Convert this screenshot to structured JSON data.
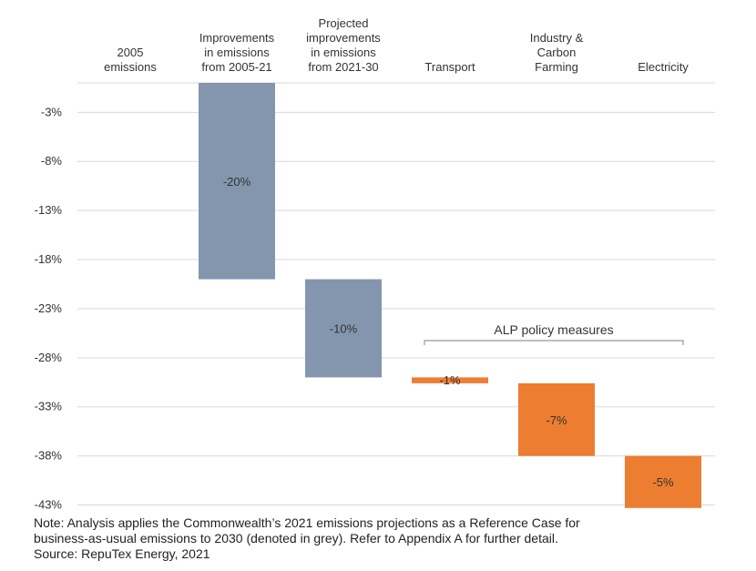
{
  "chart_data": {
    "type": "bar",
    "subtype": "waterfall",
    "categories": [
      [
        "2005",
        "emissions"
      ],
      [
        "Improvements",
        "in emissions",
        "from 2005-21"
      ],
      [
        "Projected",
        "improvements",
        "in emissions",
        "from 2021-30"
      ],
      [
        "Transport"
      ],
      [
        "Industry &",
        "Carbon",
        "Farming"
      ],
      [
        "Electricity"
      ]
    ],
    "bars": [
      {
        "start": 0,
        "end": -20,
        "label": "-20%",
        "color": "#8496ae"
      },
      {
        "start": -20,
        "end": -30,
        "label": "-10%",
        "color": "#8496ae"
      },
      {
        "start": -30,
        "end": -30.6,
        "label": "-1%",
        "color": "#ed7d31"
      },
      {
        "start": -30.6,
        "end": -38,
        "label": "-7%",
        "color": "#ed7d31"
      },
      {
        "start": -38,
        "end": -43.3,
        "label": "-5%",
        "color": "#ed7d31"
      }
    ],
    "yticks": [
      -3,
      -8,
      -13,
      -18,
      -23,
      -28,
      -33,
      -38,
      -43
    ],
    "ytick_labels": [
      "-3%",
      "-8%",
      "-13%",
      "-18%",
      "-23%",
      "-28%",
      "-33%",
      "-38%",
      "-43%"
    ],
    "ylim": [
      -43,
      0
    ],
    "grid": true,
    "annotation": {
      "text": "ALP policy measures",
      "spans_categories": [
        "Transport",
        "Electricity"
      ]
    }
  },
  "note": {
    "line1": "Note: Analysis applies the Commonwealth’s 2021 emissions projections as a Reference Case for",
    "line2": "business-as-usual emissions to 2030 (denoted in grey). Refer to Appendix A for further detail.",
    "source": "Source: RepuTex Energy, 2021"
  }
}
